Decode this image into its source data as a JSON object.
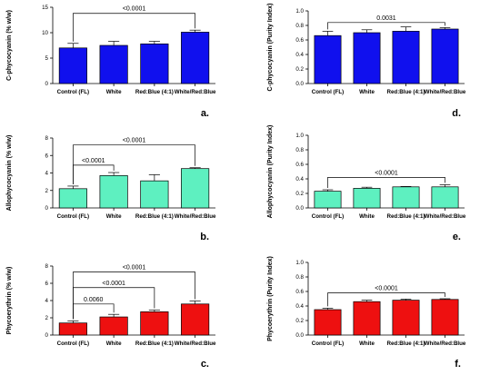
{
  "chart_data": [
    {
      "type": "bar",
      "panel_label": "a.",
      "ylabel": "C-phycocyanin (% w/w)",
      "categories": [
        "Control (FL)",
        "White",
        "Red:Blue (4:1)",
        "White/Red:Blue"
      ],
      "values": [
        7.0,
        7.5,
        7.8,
        10.1
      ],
      "errors": [
        0.9,
        0.8,
        0.5,
        0.4
      ],
      "ylim": [
        0,
        15
      ],
      "yticks": [
        0,
        5,
        10,
        15
      ],
      "bar_color": "#1010ee",
      "comparisons": [
        {
          "from": 0,
          "to": 3,
          "label": "<0.0001",
          "level": 13.8
        }
      ]
    },
    {
      "type": "bar",
      "panel_label": "d.",
      "ylabel": "C-phycocyanin (Purity Index)",
      "categories": [
        "Control (FL)",
        "White",
        "Red:Blue (4:1)",
        "White/Red:Blue"
      ],
      "values": [
        0.66,
        0.7,
        0.72,
        0.75
      ],
      "errors": [
        0.06,
        0.04,
        0.06,
        0.02
      ],
      "ylim": [
        0,
        1.0
      ],
      "yticks": [
        0.0,
        0.2,
        0.4,
        0.6,
        0.8,
        1.0
      ],
      "bar_color": "#1010ee",
      "comparisons": [
        {
          "from": 0,
          "to": 3,
          "label": "0.0031",
          "level": 0.84
        }
      ]
    },
    {
      "type": "bar",
      "panel_label": "b.",
      "ylabel": "Allophycocyanin (% w/w)",
      "categories": [
        "Control (FL)",
        "White",
        "Red:Blue (4:1)",
        "White/Red:Blue"
      ],
      "values": [
        2.2,
        3.7,
        3.1,
        4.5
      ],
      "errors": [
        0.3,
        0.35,
        0.7,
        0.1
      ],
      "ylim": [
        0,
        8
      ],
      "yticks": [
        0,
        2,
        4,
        6,
        8
      ],
      "bar_color": "#5ef0c0",
      "comparisons": [
        {
          "from": 0,
          "to": 1,
          "label": "<0.0001",
          "level": 4.9
        },
        {
          "from": 0,
          "to": 3,
          "label": "<0.0001",
          "level": 7.2
        }
      ]
    },
    {
      "type": "bar",
      "panel_label": "e.",
      "ylabel": "Allophycocyanin (Purity Index)",
      "categories": [
        "Control (FL)",
        "White",
        "Red:Blue (4:1)",
        "White/Red:Blue"
      ],
      "values": [
        0.23,
        0.27,
        0.29,
        0.29
      ],
      "errors": [
        0.02,
        0.015,
        0.005,
        0.03
      ],
      "ylim": [
        0,
        1.0
      ],
      "yticks": [
        0.0,
        0.2,
        0.4,
        0.6,
        0.8,
        1.0
      ],
      "bar_color": "#5ef0c0",
      "comparisons": [
        {
          "from": 0,
          "to": 3,
          "label": "<0.0001",
          "level": 0.42
        }
      ]
    },
    {
      "type": "bar",
      "panel_label": "c.",
      "ylabel": "Phycoerythrin (% w/w)",
      "categories": [
        "Control (FL)",
        "White",
        "Red:Blue (4:1)",
        "White/Red:Blue"
      ],
      "values": [
        1.4,
        2.1,
        2.7,
        3.6
      ],
      "errors": [
        0.25,
        0.3,
        0.2,
        0.35
      ],
      "ylim": [
        0,
        8
      ],
      "yticks": [
        0,
        2,
        4,
        6,
        8
      ],
      "bar_color": "#ee1010",
      "comparisons": [
        {
          "from": 0,
          "to": 1,
          "label": "0.0060",
          "level": 3.6
        },
        {
          "from": 0,
          "to": 2,
          "label": "<0.0001",
          "level": 5.5
        },
        {
          "from": 0,
          "to": 3,
          "label": "<0.0001",
          "level": 7.3
        }
      ]
    },
    {
      "type": "bar",
      "panel_label": "f.",
      "ylabel": "Phycoerythrin (Purity Index)",
      "categories": [
        "Control (FL)",
        "White",
        "Red:Blue (4:1)",
        "White/Red:Blue"
      ],
      "values": [
        0.35,
        0.46,
        0.48,
        0.49
      ],
      "errors": [
        0.02,
        0.02,
        0.015,
        0.01
      ],
      "ylim": [
        0,
        1.0
      ],
      "yticks": [
        0.0,
        0.2,
        0.4,
        0.6,
        0.8,
        1.0
      ],
      "bar_color": "#ee1010",
      "comparisons": [
        {
          "from": 0,
          "to": 3,
          "label": "<0.0001",
          "level": 0.58
        }
      ]
    }
  ]
}
